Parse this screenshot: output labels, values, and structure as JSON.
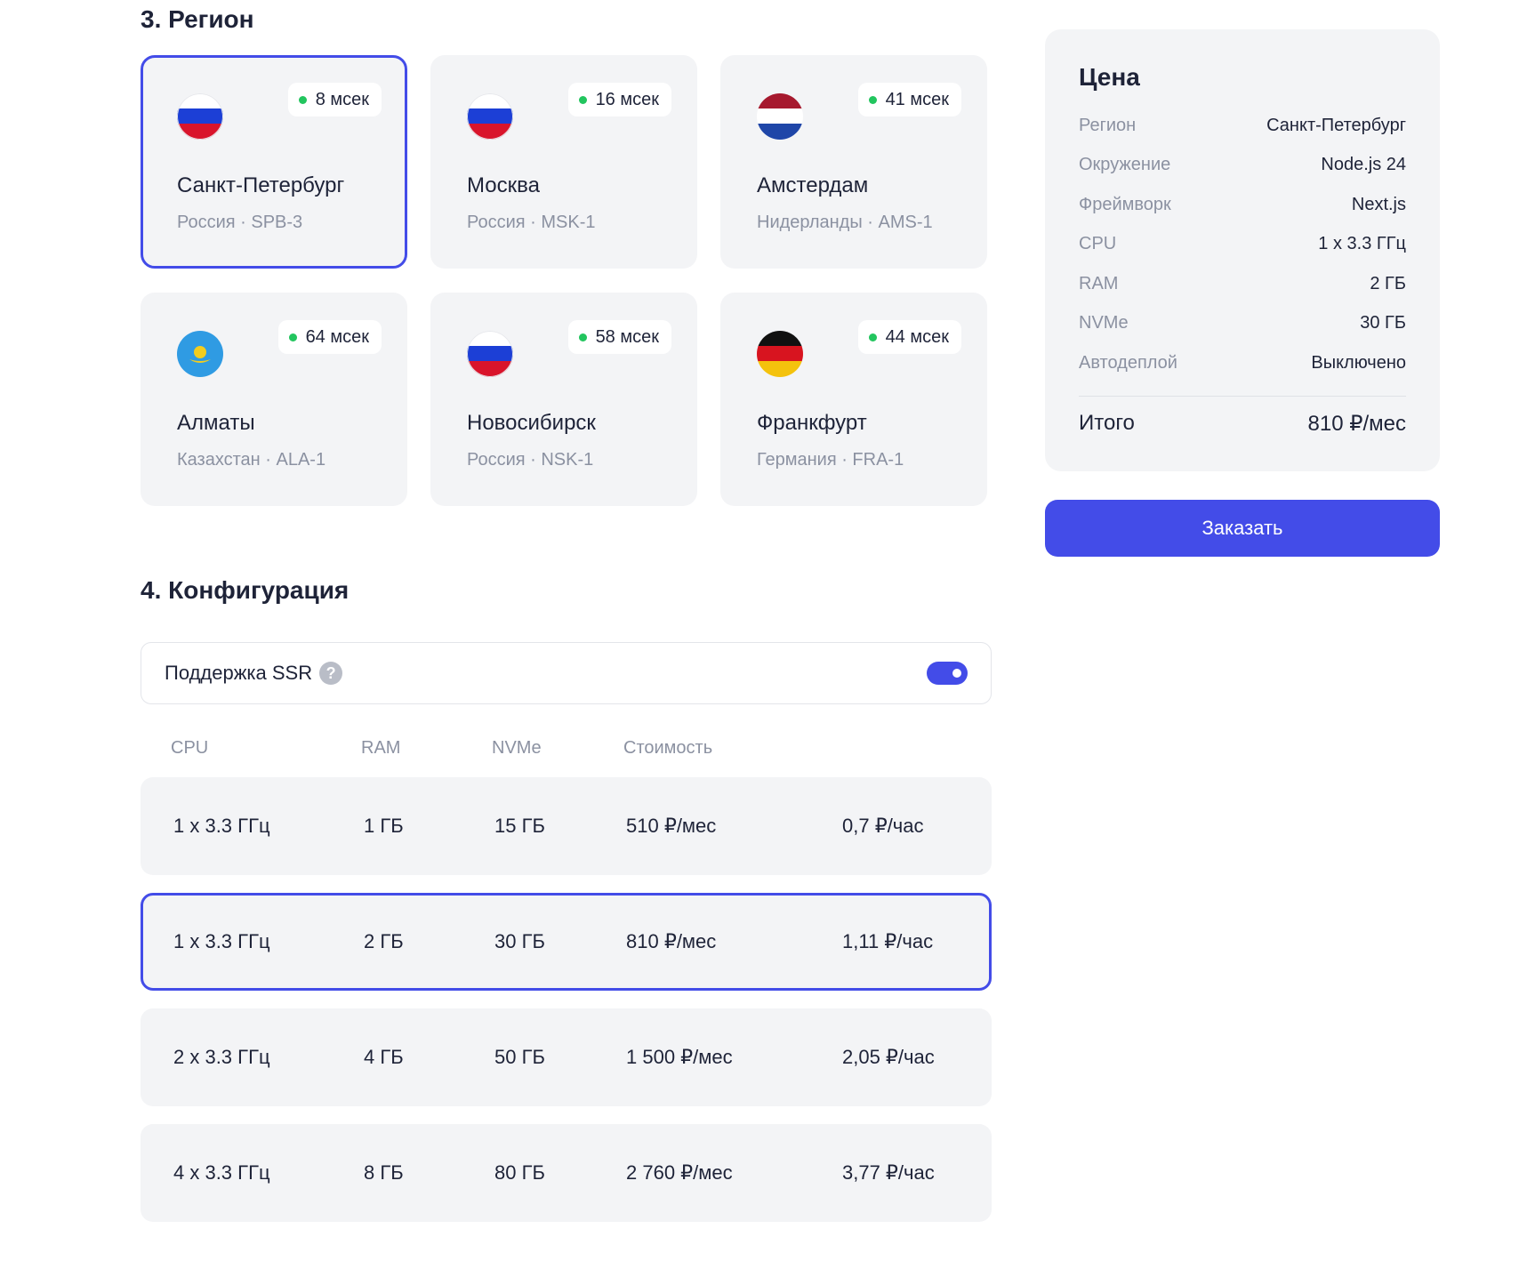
{
  "region_section": {
    "title": "3. Регион",
    "regions": [
      {
        "city": "Санкт-Петербург",
        "subtitle": "Россия · SPB-3",
        "latency": "8 мсек",
        "flag": "russia-flag-icon",
        "selected": true
      },
      {
        "city": "Москва",
        "subtitle": "Россия · MSK-1",
        "latency": "16 мсек",
        "flag": "russia-flag-icon",
        "selected": false
      },
      {
        "city": "Амстердам",
        "subtitle": "Нидерланды · AMS-1",
        "latency": "41 мсек",
        "flag": "netherlands-flag-icon",
        "selected": false
      },
      {
        "city": "Алматы",
        "subtitle": "Казахстан · ALA-1",
        "latency": "64 мсек",
        "flag": "kazakhstan-flag-icon",
        "selected": false
      },
      {
        "city": "Новосибирск",
        "subtitle": "Россия · NSK-1",
        "latency": "58 мсек",
        "flag": "russia-flag-icon",
        "selected": false
      },
      {
        "city": "Франкфурт",
        "subtitle": "Германия · FRA-1",
        "latency": "44 мсек",
        "flag": "germany-flag-icon",
        "selected": false
      }
    ]
  },
  "config_section": {
    "title": "4. Конфигурация",
    "ssr_label": "Поддержка SSR",
    "ssr_help": "?",
    "ssr_enabled": true,
    "headers": {
      "cpu": "CPU",
      "ram": "RAM",
      "nvme": "NVMe",
      "cost": "Стоимость"
    },
    "rows": [
      {
        "cpu": "1 x 3.3 ГГц",
        "ram": "1 ГБ",
        "nvme": "15 ГБ",
        "monthly": "510 ₽/мес",
        "hourly": "0,7 ₽/час",
        "selected": false
      },
      {
        "cpu": "1 x 3.3 ГГц",
        "ram": "2 ГБ",
        "nvme": "30 ГБ",
        "monthly": "810 ₽/мес",
        "hourly": "1,11 ₽/час",
        "selected": true
      },
      {
        "cpu": "2 x 3.3 ГГц",
        "ram": "4 ГБ",
        "nvme": "50 ГБ",
        "monthly": "1 500 ₽/мес",
        "hourly": "2,05 ₽/час",
        "selected": false
      },
      {
        "cpu": "4 x 3.3 ГГц",
        "ram": "8 ГБ",
        "nvme": "80 ГБ",
        "monthly": "2 760 ₽/мес",
        "hourly": "3,77 ₽/час",
        "selected": false
      }
    ]
  },
  "price": {
    "title": "Цена",
    "lines": [
      {
        "label": "Регион",
        "value": "Санкт-Петербург"
      },
      {
        "label": "Окружение",
        "value": "Node.js 24"
      },
      {
        "label": "Фреймворк",
        "value": "Next.js"
      },
      {
        "label": "CPU",
        "value": "1 x 3.3 ГГц"
      },
      {
        "label": "RAM",
        "value": "2 ГБ"
      },
      {
        "label": "NVMe",
        "value": "30 ГБ"
      },
      {
        "label": "Автодеплой",
        "value": "Выключено"
      }
    ],
    "total_label": "Итого",
    "total_value": "810 ₽/мес"
  },
  "order_button": "Заказать",
  "colors": {
    "accent": "#434ce8",
    "card_bg": "#f3f4f6",
    "latency_dot": "#22c55e",
    "muted_text": "#8b91a1"
  }
}
